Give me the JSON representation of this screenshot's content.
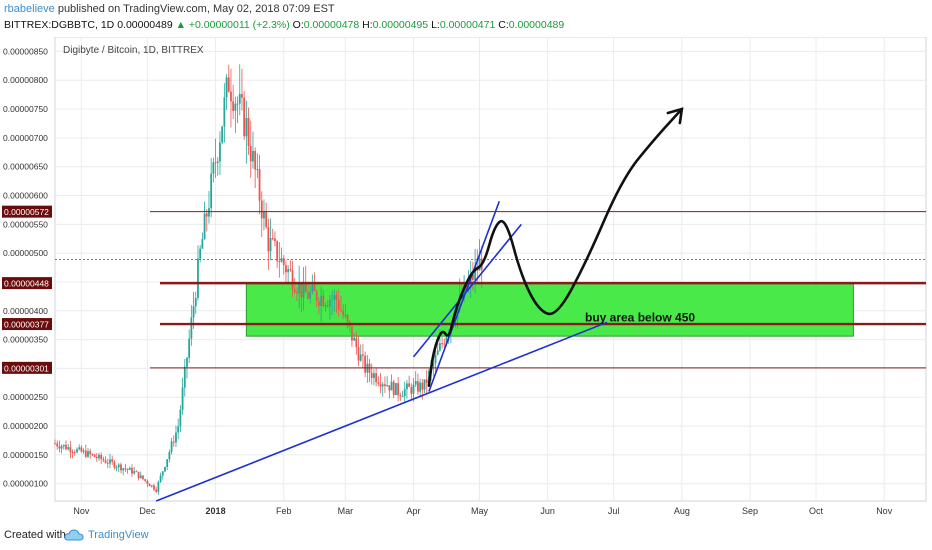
{
  "header": {
    "author": "rbabelieve",
    "published": " published on TradingView.com, May 02, 2018 07:09 EST",
    "symbol": "BITTREX:DGBBTC, 1D",
    "last": "0.00000489",
    "change": "+0.00000011 (+2.3%)",
    "open_label": "O:",
    "open": "0.00000478",
    "high_label": "H:",
    "high": "0.00000495",
    "low_label": "L:",
    "low": "0.00000471",
    "close_label": "C:",
    "close": "0.00000489"
  },
  "footer": {
    "created_with": "Created with",
    "brand": "TradingView"
  },
  "chart_data": {
    "type": "candlestick",
    "title": "Digibyte / Bitcoin, 1D, BITTREX",
    "ylim": [
      7e-07,
      8.75e-06
    ],
    "y_ticks": [
      "0.00000850",
      "0.00000800",
      "0.00000750",
      "0.00000700",
      "0.00000650",
      "0.00000600",
      "0.00000550",
      "0.00000500",
      "0.00000450",
      "0.00000400",
      "0.00000350",
      "0.00000300",
      "0.00000250",
      "0.00000200",
      "0.00000150",
      "0.00000100"
    ],
    "x_ticks": [
      "Nov",
      "Dec",
      "2018",
      "Feb",
      "Mar",
      "Apr",
      "May",
      "Jun",
      "Jul",
      "Aug",
      "Sep",
      "Oct",
      "Nov"
    ],
    "x_range": [
      "2017-10-20",
      "2018-11-20"
    ],
    "price_series_key_points": [
      {
        "date": "2017-10-20",
        "price": 1.7e-06
      },
      {
        "date": "2017-11-05",
        "price": 1.5e-06
      },
      {
        "date": "2017-11-25",
        "price": 1.2e-06
      },
      {
        "date": "2017-12-05",
        "price": 9e-07
      },
      {
        "date": "2017-12-15",
        "price": 2e-06
      },
      {
        "date": "2017-12-25",
        "price": 5e-06
      },
      {
        "date": "2018-01-07",
        "price": 8e-06
      },
      {
        "date": "2018-01-15",
        "price": 7.2e-06
      },
      {
        "date": "2018-01-25",
        "price": 5.2e-06
      },
      {
        "date": "2018-02-10",
        "price": 4.3e-06
      },
      {
        "date": "2018-02-25",
        "price": 4.2e-06
      },
      {
        "date": "2018-03-10",
        "price": 3e-06
      },
      {
        "date": "2018-03-25",
        "price": 2.6e-06
      },
      {
        "date": "2018-04-06",
        "price": 2.7e-06
      },
      {
        "date": "2018-04-20",
        "price": 4e-06
      },
      {
        "date": "2018-05-02",
        "price": 4.89e-06
      }
    ],
    "horizontal_levels": [
      {
        "label": "0.00000572",
        "value": 5.72e-06,
        "color": "#8b1a1a"
      },
      {
        "label": "0.00000448",
        "value": 4.48e-06,
        "color": "#8b1a1a"
      },
      {
        "label": "0.00000377",
        "value": 3.77e-06,
        "color": "#8b1a1a"
      },
      {
        "label": "0.00000301",
        "value": 3.01e-06,
        "color": "#8b1a1a"
      }
    ],
    "last_price_line": 4.89e-06,
    "buy_zone": {
      "top": 4.48e-06,
      "bottom": 3.56e-06,
      "from": "2018-01-15",
      "to": "2018-10-18",
      "color": "#3ee83e",
      "label": "buy area below 450"
    },
    "trendlines": [
      {
        "from": [
          "2017-12-05",
          7e-07
        ],
        "to": [
          "2018-06-28",
          3.8e-06
        ],
        "color": "#1f2fd0"
      },
      {
        "from": [
          "2018-04-08",
          2.6e-06
        ],
        "to": [
          "2018-05-10",
          5.9e-06
        ],
        "color": "#1f2fd0"
      },
      {
        "from": [
          "2018-04-01",
          3.2e-06
        ],
        "to": [
          "2018-05-20",
          5.5e-06
        ],
        "color": "#1f2fd0"
      }
    ],
    "drawing_path": [
      [
        "2018-04-08",
        2.7e-06
      ],
      [
        "2018-04-10",
        3.3e-06
      ],
      [
        "2018-04-14",
        3.7e-06
      ],
      [
        "2018-04-17",
        3.5e-06
      ],
      [
        "2018-04-20",
        4e-06
      ],
      [
        "2018-04-24",
        4.4e-06
      ],
      [
        "2018-04-28",
        4.7e-06
      ],
      [
        "2018-05-03",
        4.8e-06
      ],
      [
        "2018-05-08",
        5.5e-06
      ],
      [
        "2018-05-13",
        5.6e-06
      ],
      [
        "2018-05-20",
        4.6e-06
      ],
      [
        "2018-05-28",
        4e-06
      ],
      [
        "2018-06-05",
        3.9e-06
      ],
      [
        "2018-06-18",
        4.8e-06
      ],
      [
        "2018-07-05",
        6.3e-06
      ],
      [
        "2018-07-20",
        7e-06
      ],
      [
        "2018-08-01",
        7.5e-06
      ]
    ],
    "colors": {
      "up": "#26a69a",
      "down": "#ef5350",
      "grid": "#e8ecf0",
      "axis_text": "#333333",
      "level_label_bg": "#6b0c0c"
    }
  }
}
